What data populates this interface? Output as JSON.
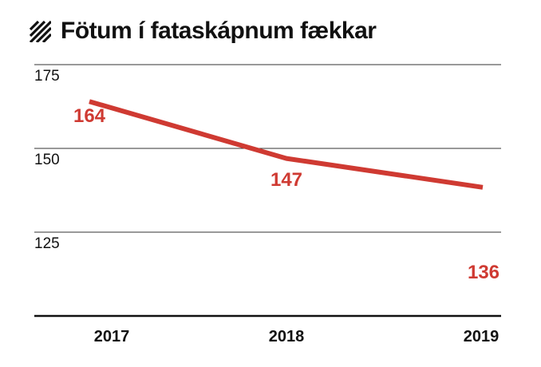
{
  "title": "Fötum í fataskápnum fækkar",
  "title_icon": "diagonal-stripes-icon",
  "colors": {
    "line": "#cf3a32",
    "text": "#111111",
    "grid": "#333333",
    "value_label": "#cf3a32"
  },
  "chart_data": {
    "type": "line",
    "title": "Fötum í fataskápnum fækkar",
    "xlabel": "",
    "ylabel": "",
    "categories": [
      "2017",
      "2018",
      "2019"
    ],
    "series": [
      {
        "values": [
          164,
          147,
          136
        ]
      }
    ],
    "yticks": [
      125,
      150,
      175
    ],
    "ylim": [
      100,
      175
    ],
    "grid": true,
    "data_labels": [
      "164",
      "147",
      "136"
    ]
  }
}
